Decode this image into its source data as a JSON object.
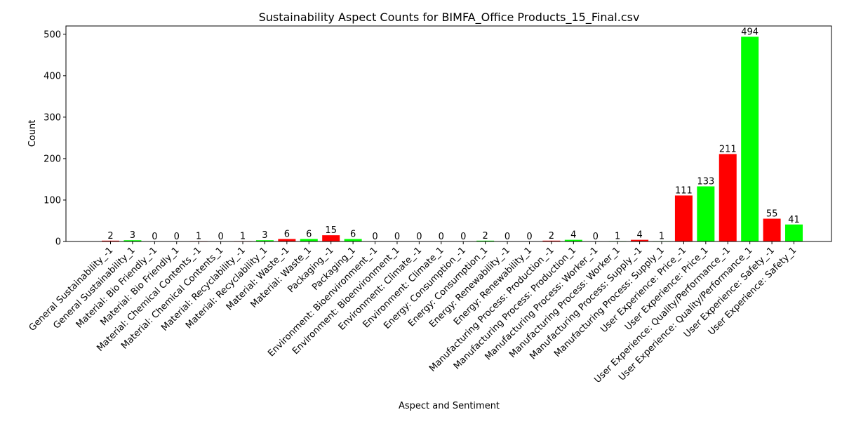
{
  "chart_data": {
    "type": "bar",
    "title": "Sustainability Aspect Counts for BIMFA_Office Products_15_Final.csv",
    "xlabel": "Aspect and Sentiment",
    "ylabel": "Count",
    "ylim": [
      0,
      520
    ],
    "yticks": [
      0,
      100,
      200,
      300,
      400,
      500
    ],
    "grid": false,
    "colors": {
      "negative": "#ff0000",
      "positive": "#00ff00"
    },
    "categories": [
      "General Sustainability_-1",
      "General Sustainability_1",
      "Material: Bio Friendly_-1",
      "Material: Bio Friendly_1",
      "Material: Chemical Contents_-1",
      "Material: Chemical Contents_1",
      "Material: Recyclability_-1",
      "Material: Recyclability_1",
      "Material: Waste_-1",
      "Material: Waste_1",
      "Packaging_-1",
      "Packaging_1",
      "Environment: Bioenvironment_-1",
      "Environment: Bioenvironment_1",
      "Environment: Climate_-1",
      "Environment: Climate_1",
      "Energy: Consumption_-1",
      "Energy: Consumption_1",
      "Energy: Renewability_-1",
      "Energy: Renewability_1",
      "Manufacturing Process: Production_-1",
      "Manufacturing Process: Production_1",
      "Manufacturing Process: Worker_-1",
      "Manufacturing Process: Worker_1",
      "Manufacturing Process: Supply_-1",
      "Manufacturing Process: Supply_1",
      "User Experience: Price_-1",
      "User Experience: Price_1",
      "User Experience: Quality/Performance_-1",
      "User Experience: Quality/Performance_1",
      "User Experience: Safety_-1",
      "User Experience: Safety_1"
    ],
    "values": [
      2,
      3,
      0,
      0,
      1,
      0,
      1,
      3,
      6,
      6,
      15,
      6,
      0,
      0,
      0,
      0,
      0,
      2,
      0,
      0,
      2,
      4,
      0,
      1,
      4,
      1,
      111,
      133,
      211,
      494,
      55,
      41
    ]
  }
}
